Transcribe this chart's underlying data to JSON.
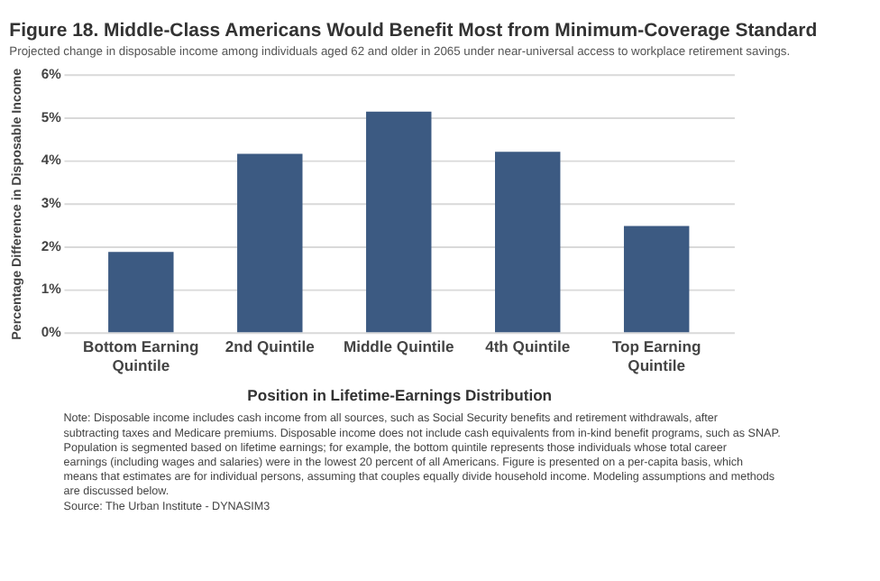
{
  "chart_data": {
    "type": "bar",
    "title": "Figure 18. Middle-Class Americans Would Benefit Most from Minimum-Coverage Standard",
    "subtitle": "Projected change in disposable income among individuals aged 62 and older in 2065 under near-universal access to workplace retirement savings.",
    "xlabel": "Position in Lifetime-Earnings Distribution",
    "ylabel": "Percentage Difference in Disposable Income",
    "categories": [
      "Bottom Earning Quintile",
      "2nd Quintile",
      "Middle Quintile",
      "4th Quintile",
      "Top Earning Quintile"
    ],
    "values": [
      1.87,
      4.15,
      5.13,
      4.2,
      2.47
    ],
    "color": "#3c5a82",
    "ylim": [
      0,
      6
    ],
    "yticks": [
      {
        "value": 0,
        "label": "0%"
      },
      {
        "value": 1,
        "label": "1%"
      },
      {
        "value": 2,
        "label": "2%"
      },
      {
        "value": 3,
        "label": "3%"
      },
      {
        "value": 4,
        "label": "4%"
      },
      {
        "value": 5,
        "label": "5%"
      },
      {
        "value": 6,
        "label": "6%"
      }
    ],
    "grid": "y",
    "annotations": [
      "Note: Disposable income includes cash income from all sources, such as Social Security benefits and retirement withdrawals, after subtracting taxes and Medicare premiums. Disposable income does not include cash equivalents from in-kind benefit programs, such as SNAP.  Population is segmented based on lifetime earnings; for example, the bottom quintile represents those individuals whose total career earnings (including wages and salaries) were in the lowest 20 percent of all Americans. Figure is presented on a per-capita basis, which means that estimates are for individual persons, assuming that couples equally divide household income. Modeling assumptions and methods are discussed below.",
      "Source: The Urban Institute - DYNASIM3"
    ]
  }
}
